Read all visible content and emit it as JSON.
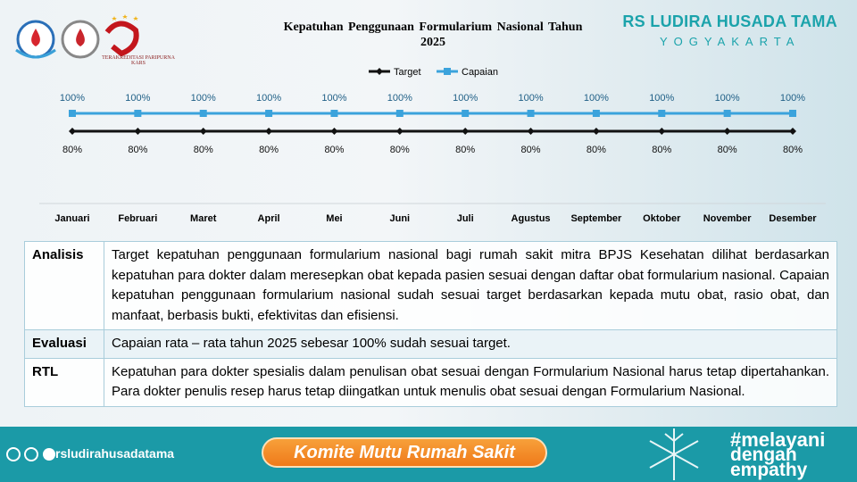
{
  "header": {
    "brand": "RS LUDIRA HUSADA TAMA",
    "city": "YOGYAKARTA",
    "accreditation": "Terakreditasi Paripurna",
    "accreditation_body": "KARS"
  },
  "chart_data": {
    "type": "line",
    "title": "Kepatuhan Penggunaan Formularium Nasional Tahun 2025",
    "categories": [
      "Januari",
      "Februari",
      "Maret",
      "April",
      "Mei",
      "Juni",
      "Juli",
      "Agustus",
      "September",
      "Oktober",
      "November",
      "Desember"
    ],
    "ylim": [
      0,
      130
    ],
    "legend": "top",
    "series": [
      {
        "name": "Target",
        "color": "#111111",
        "marker": "diamond",
        "values": [
          80,
          80,
          80,
          80,
          80,
          80,
          80,
          80,
          80,
          80,
          80,
          80
        ],
        "value_labels": [
          "80%",
          "80%",
          "80%",
          "80%",
          "80%",
          "80%",
          "80%",
          "80%",
          "80%",
          "80%",
          "80%",
          "80%"
        ],
        "label_position": "below"
      },
      {
        "name": "Capaian",
        "color": "#3ba3dc",
        "marker": "square",
        "values": [
          100,
          100,
          100,
          100,
          100,
          100,
          100,
          100,
          100,
          100,
          100,
          100
        ],
        "value_labels": [
          "100%",
          "100%",
          "100%",
          "100%",
          "100%",
          "100%",
          "100%",
          "100%",
          "100%",
          "100%",
          "100%",
          "100%"
        ],
        "label_position": "above"
      }
    ]
  },
  "table": {
    "rows": [
      [
        "Analisis",
        "Target kepatuhan penggunaan formularium nasional bagi rumah sakit mitra BPJS Kesehatan dilihat berdasarkan kepatuhan para dokter dalam meresepkan obat kepada pasien sesuai dengan daftar obat formularium nasional. Capaian kepatuhan penggunaan formularium nasional sudah sesuai target berdasarkan kepada mutu obat, rasio obat, dan manfaat, berbasis bukti, efektivitas dan efisiensi."
      ],
      [
        "Evaluasi",
        "Capaian rata – rata tahun 2025 sebesar 100% sudah sesuai target."
      ],
      [
        "RTL",
        "Kepatuhan para dokter spesialis dalam penulisan obat sesuai dengan Formularium Nasional harus tetap dipertahankan. Para dokter penulis resep harus tetap diingatkan untuk menulis obat sesuai dengan Formularium Nasional."
      ]
    ]
  },
  "footer": {
    "social": "rsludirahusadatama",
    "banner": "Komite Mutu Rumah Sakit",
    "hashtag": [
      "#melayani",
      "dengan",
      "empathy"
    ]
  }
}
